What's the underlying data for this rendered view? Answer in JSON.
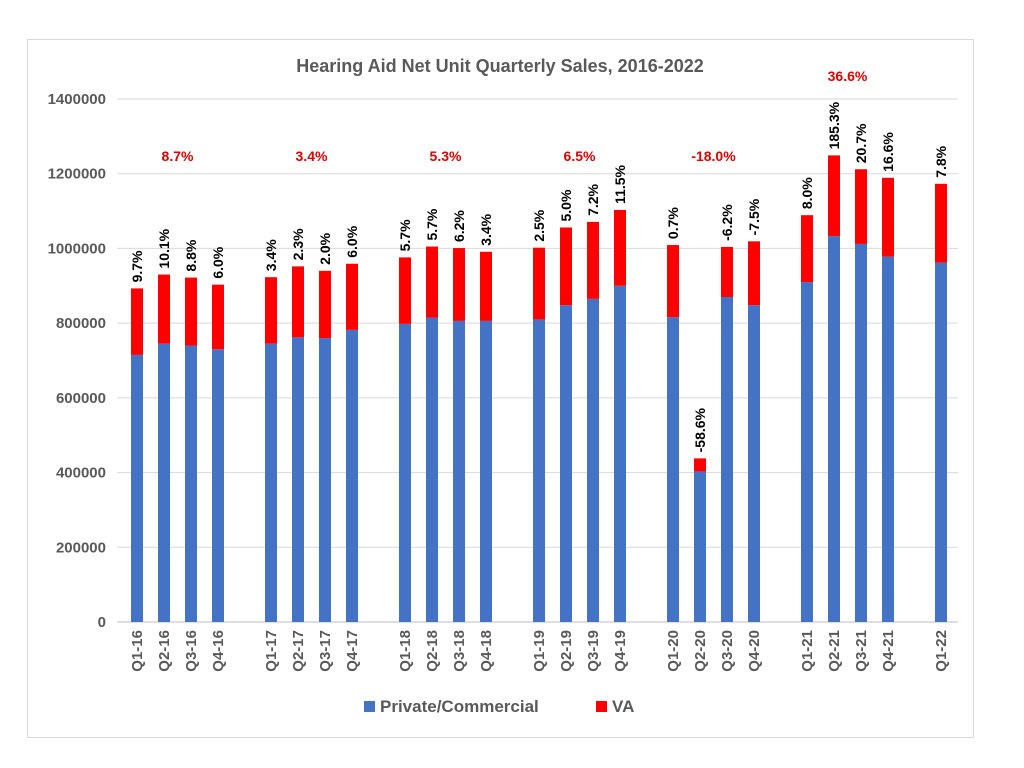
{
  "chart_data": {
    "type": "bar",
    "stacked": true,
    "title": "Hearing Aid Net Unit Quarterly Sales, 2016-2022",
    "xlabel": "",
    "ylabel": "",
    "ylim": [
      0,
      1400000
    ],
    "yticks": [
      "0",
      "200000",
      "400000",
      "600000",
      "800000",
      "1000000",
      "1200000",
      "1400000"
    ],
    "grid": true,
    "legend": "bottom",
    "categories": [
      "Q1-16",
      "Q2-16",
      "Q3-16",
      "Q4-16",
      "Q1-17",
      "Q2-17",
      "Q3-17",
      "Q4-17",
      "Q1-18",
      "Q2-18",
      "Q3-18",
      "Q4-18",
      "Q1-19",
      "Q2-19",
      "Q3-19",
      "Q4-19",
      "Q1-20",
      "Q2-20",
      "Q3-20",
      "Q4-20",
      "Q1-21",
      "Q2-21",
      "Q3-21",
      "Q4-21",
      "Q1-22"
    ],
    "groups": [
      4,
      4,
      4,
      4,
      4,
      4,
      1
    ],
    "series": [
      {
        "name": "Private/Commercial",
        "color": "#4472c4",
        "values": [
          715000,
          745000,
          740000,
          730000,
          745000,
          762000,
          760000,
          782000,
          798000,
          815000,
          806000,
          806000,
          810000,
          848000,
          865000,
          900000,
          816000,
          403000,
          870000,
          848000,
          910000,
          1033000,
          1012000,
          978000,
          962000
        ]
      },
      {
        "name": "VA",
        "color": "#ff0000",
        "values": [
          178000,
          185000,
          182000,
          173000,
          178000,
          190000,
          180000,
          177000,
          178000,
          190000,
          195000,
          185000,
          192000,
          208000,
          206000,
          203000,
          193000,
          35000,
          134000,
          171000,
          179000,
          216000,
          200000,
          211000,
          211000
        ]
      }
    ],
    "bar_labels": [
      "9.7%",
      "10.1%",
      "8.8%",
      "6.0%",
      "3.4%",
      "2.3%",
      "2.0%",
      "6.0%",
      "5.7%",
      "5.7%",
      "6.2%",
      "3.4%",
      "2.5%",
      "5.0%",
      "7.2%",
      "11.5%",
      "0.7%",
      "-58.6%",
      "-6.2%",
      "-7.5%",
      "8.0%",
      "185.3%",
      "20.7%",
      "16.6%",
      "7.8%"
    ],
    "annual_labels": [
      {
        "text": "8.7%",
        "group": 0
      },
      {
        "text": "3.4%",
        "group": 1
      },
      {
        "text": "5.3%",
        "group": 2
      },
      {
        "text": "6.5%",
        "group": 3
      },
      {
        "text": "-18.0%",
        "group": 4
      },
      {
        "text": "36.6%",
        "group": 5
      }
    ],
    "annual_label_color": "#e00000"
  }
}
